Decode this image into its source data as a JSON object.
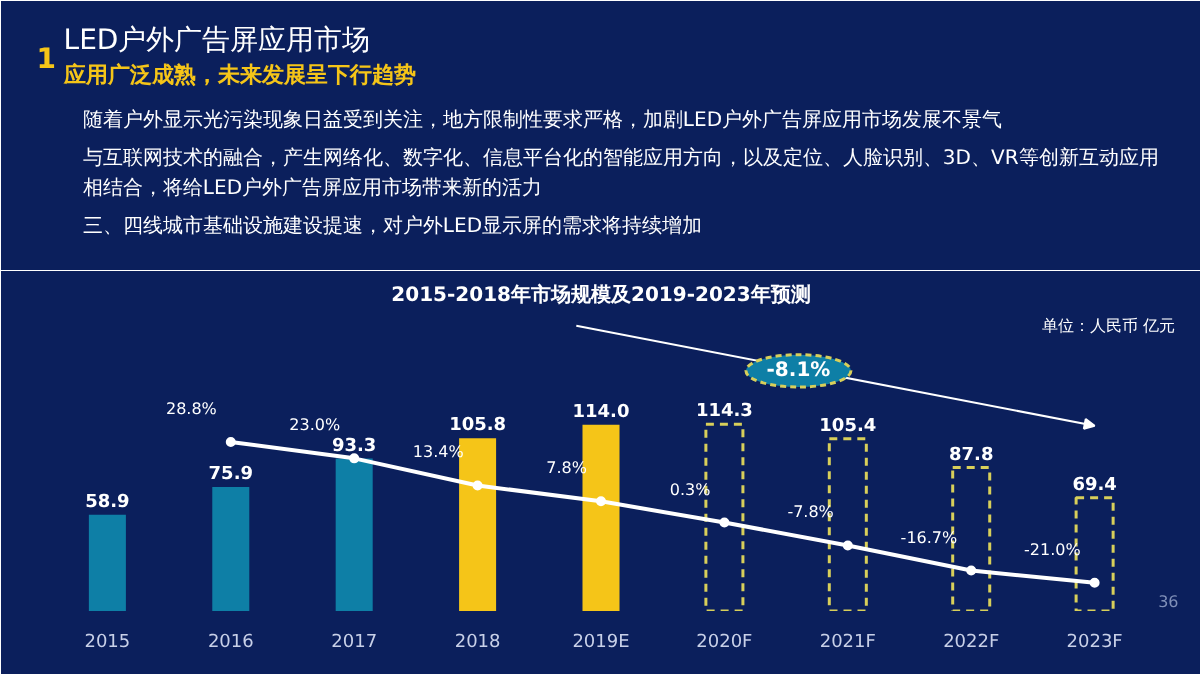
{
  "chart_data": [
    {
      "type": "other",
      "title": "LED户外广告屏应用市场",
      "subtitle": "应用广泛成熟，未来发展呈下行趋势",
      "annotations": [
        "1",
        "随着户外显示光污染现象日益受到关注，地方限制性要求严格，加剧LED户外广告屏应用市场发展不景气",
        "与互联网技术的融合，产生网络化、数字化、信息平台化的智能应用方向，以及定位、人脸识别、3D、VR等创新互动应用相结合，将给LED户外广告屏应用市场带来新的活力",
        "三、四线城市基础设施建设提速，对户外LED显示屏的需求将持续增加"
      ]
    },
    {
      "type": "bar",
      "title": "2015-2018年市场规模及2019-2023年预测",
      "annotations": [
        "单位：人民币 亿元",
        "-8.1%",
        "36"
      ],
      "categories": [
        "2015",
        "2016",
        "2017",
        "2018",
        "2019E",
        "2020F",
        "2021F",
        "2022F",
        "2023F"
      ],
      "ylim": [
        0,
        180
      ],
      "y2lim": [
        -31,
        73
      ],
      "tick_labels": "x",
      "grid": false,
      "series": [
        {
          "type": "bar",
          "colors": [
            "#0e7fa6",
            "#0e7fa6",
            "#0e7fa6",
            "#f5c518",
            "#f5c518",
            null,
            null,
            null,
            null
          ],
          "values": [
            58.9,
            75.9,
            93.3,
            105.8,
            114.0,
            null,
            null,
            null,
            null
          ],
          "value_labels": [
            "58.9",
            "75.9",
            "93.3",
            "105.8",
            "114.0",
            null,
            null,
            null,
            null
          ]
        },
        {
          "type": "bar",
          "color": "#d8cf5a",
          "line_style": "dashed",
          "values": [
            null,
            null,
            null,
            null,
            null,
            114.3,
            105.4,
            87.8,
            69.4
          ],
          "value_labels": [
            null,
            null,
            null,
            null,
            null,
            "114.3",
            "105.4",
            "87.8",
            "69.4"
          ]
        },
        {
          "type": "line",
          "axis": "y2",
          "color": "#ffffff",
          "marker": "circle",
          "values": [
            null,
            28.8,
            23.0,
            13.4,
            7.8,
            0.3,
            -7.8,
            -16.7,
            -21.0
          ],
          "value_labels": [
            null,
            "28.8%",
            "23.0%",
            "13.4%",
            "7.8%",
            "0.3%",
            "-7.8%",
            "-16.7%",
            "-21.0%"
          ]
        }
      ]
    }
  ]
}
